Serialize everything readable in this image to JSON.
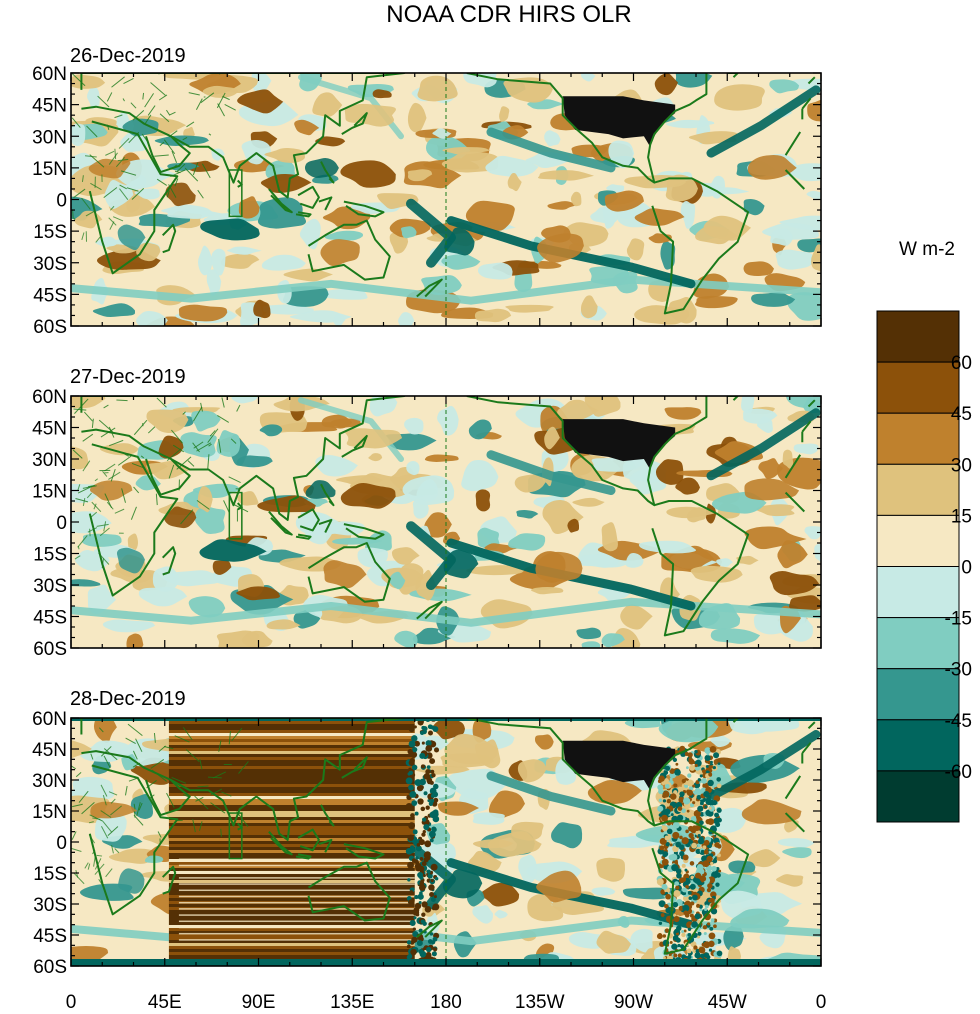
{
  "title": "NOAA CDR HIRS OLR",
  "units": "W m-2",
  "panels": [
    {
      "date": "26-Dec-2019"
    },
    {
      "date": "27-Dec-2019"
    },
    {
      "date": "28-Dec-2019"
    }
  ],
  "lat_labels": [
    "60N",
    "45N",
    "30N",
    "15N",
    "0",
    "15S",
    "30S",
    "45S",
    "60S"
  ],
  "lon_labels": [
    "0",
    "45E",
    "90E",
    "135E",
    "180",
    "135W",
    "90W",
    "45W",
    "0"
  ],
  "colorbar": {
    "labels": [
      "60",
      "45",
      "30",
      "15",
      "0",
      "-15",
      "-30",
      "-45",
      "-60"
    ],
    "colors": [
      "#543005",
      "#8c510a",
      "#bf812d",
      "#dfc27d",
      "#f6e8c3",
      "#c7eae5",
      "#80cdc1",
      "#35978f",
      "#01665e",
      "#003c30"
    ]
  },
  "coastline_color": "#1b7a1b"
}
